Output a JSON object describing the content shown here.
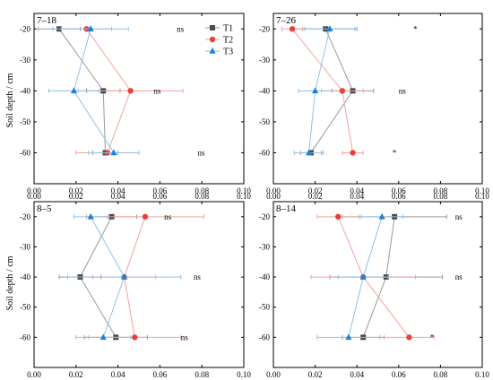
{
  "chart_data": [
    {
      "type": "line",
      "title": "7–18",
      "xlim": [
        0,
        0.1
      ],
      "xticks": [
        "0.00",
        "0.02",
        "0.04",
        "0.06",
        "0.08",
        "0.10"
      ],
      "ylim": [
        -70,
        -15
      ],
      "yticks": [
        "-20",
        "-30",
        "-40",
        "-50",
        "-60"
      ],
      "ylabel": "Soil depth / cm",
      "depths": [
        -20,
        -40,
        -60
      ],
      "series": [
        {
          "name": "T1",
          "values": [
            0.012,
            0.033,
            0.034
          ],
          "err": [
            0.01,
            0.008,
            0.006
          ]
        },
        {
          "name": "T2",
          "values": [
            0.025,
            0.046,
            0.035
          ],
          "err": [
            0.012,
            0.025,
            0.015
          ]
        },
        {
          "name": "T3",
          "values": [
            0.027,
            0.019,
            0.038
          ],
          "err": [
            0.018,
            0.012,
            0.012
          ]
        }
      ],
      "significance": [
        {
          "depth": -20,
          "label": "ns"
        },
        {
          "depth": -40,
          "label": "ns"
        },
        {
          "depth": -60,
          "label": "ns"
        }
      ],
      "legend": "top-right"
    },
    {
      "type": "line",
      "title": "7–26",
      "xlim": [
        0,
        0.1
      ],
      "xticks": [
        "0.00",
        "0.02",
        "0.04",
        "0.06",
        "0.08",
        "0.10"
      ],
      "ylim": [
        -70,
        -15
      ],
      "yticks": [
        "-20",
        "-30",
        "-40",
        "-50",
        "-60"
      ],
      "depths": [
        -20,
        -40,
        -60
      ],
      "series": [
        {
          "name": "T1",
          "values": [
            0.025,
            0.038,
            0.018
          ],
          "err": [
            0.015,
            0.01,
            0.005
          ]
        },
        {
          "name": "T2",
          "values": [
            0.009,
            0.033,
            0.038
          ],
          "err": [
            0.005,
            0.01,
            0.005
          ]
        },
        {
          "name": "T3",
          "values": [
            0.027,
            0.02,
            0.017
          ],
          "err": [
            0.012,
            0.008,
            0.007
          ]
        }
      ],
      "significance": [
        {
          "depth": -20,
          "label": "*"
        },
        {
          "depth": -40,
          "label": "ns"
        },
        {
          "depth": -60,
          "label": "*"
        }
      ]
    },
    {
      "type": "line",
      "title": "8–5",
      "xlim": [
        0,
        0.1
      ],
      "xticks": [
        "0.00",
        "0.02",
        "0.04",
        "0.06",
        "0.08",
        "0.10"
      ],
      "ylim": [
        -70,
        -15
      ],
      "yticks": [
        "-20",
        "-30",
        "-40",
        "-50",
        "-60"
      ],
      "ylabel": "Soil depth / cm",
      "depths": [
        -20,
        -40,
        -60
      ],
      "series": [
        {
          "name": "T1",
          "values": [
            0.037,
            0.022,
            0.039
          ],
          "err": [
            0.012,
            0.01,
            0.015
          ]
        },
        {
          "name": "T2",
          "values": [
            0.053,
            0.043,
            0.048
          ],
          "err": [
            0.028,
            0.015,
            0.022
          ]
        },
        {
          "name": "T3",
          "values": [
            0.027,
            0.043,
            0.033
          ],
          "err": [
            0.008,
            0.027,
            0.013
          ]
        }
      ],
      "significance": [
        {
          "depth": -20,
          "label": "ns"
        },
        {
          "depth": -40,
          "label": "ns"
        },
        {
          "depth": -60,
          "label": "ns"
        }
      ]
    },
    {
      "type": "line",
      "title": "8–14",
      "xlim": [
        0,
        0.1
      ],
      "xticks": [
        "0.00",
        "0.02",
        "0.04",
        "0.06",
        "0.08",
        "0.10"
      ],
      "ylim": [
        -70,
        -15
      ],
      "yticks": [
        "-20",
        "-30",
        "-40",
        "-50",
        "-60"
      ],
      "depths": [
        -20,
        -40,
        -60
      ],
      "series": [
        {
          "name": "T1",
          "values": [
            0.058,
            0.054,
            0.043
          ],
          "err": [
            0.025,
            0.027,
            0.01
          ]
        },
        {
          "name": "T2",
          "values": [
            0.031,
            0.043,
            0.065
          ],
          "err": [
            0.01,
            0.025,
            0.012
          ]
        },
        {
          "name": "T3",
          "values": [
            0.052,
            0.043,
            0.036
          ],
          "err": [
            0.01,
            0.012,
            0.015
          ]
        }
      ],
      "significance": [
        {
          "depth": -20,
          "label": "ns"
        },
        {
          "depth": -40,
          "label": "ns"
        },
        {
          "depth": -60,
          "label": "*"
        }
      ]
    }
  ],
  "colors": {
    "T1": "#4a4a4a",
    "T2": "#e8413c",
    "T3": "#1f7fd4",
    "T1_line": "#9a9a9a",
    "T2_line": "#f4a3a0",
    "T3_line": "#8ec3ea"
  },
  "markers": {
    "T1": "square",
    "T2": "circle",
    "T3": "triangle"
  }
}
